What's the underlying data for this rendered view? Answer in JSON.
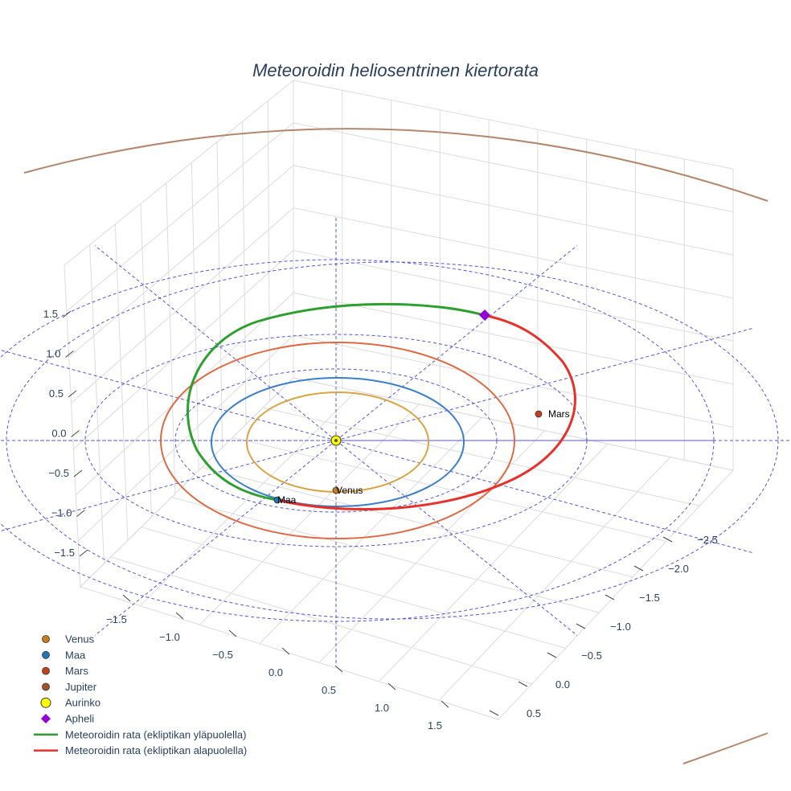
{
  "chart_data": {
    "type": "line",
    "title": "Meteoroidin heliosentrinen kiertorata",
    "z_ticks": [
      "1.5",
      "1.0",
      "0.5",
      "0.0",
      "−0.5",
      "−1.0",
      "−1.5"
    ],
    "x_ticks": [
      "−1.5",
      "−1.0",
      "−0.5",
      "0.0",
      "0.5",
      "1.0",
      "1.5"
    ],
    "y_ticks": [
      "−2.5",
      "−2.0",
      "−1.5",
      "−1.0",
      "−0.5",
      "0.0",
      "0.5"
    ],
    "orbits": [
      {
        "name": "Venus",
        "radius_au": 0.72,
        "color": "#d9a441"
      },
      {
        "name": "Maa",
        "radius_au": 1.0,
        "color": "#3a7fc8"
      },
      {
        "name": "Mars",
        "radius_au": 1.52,
        "color": "#de6a44"
      },
      {
        "name": "Jupiter",
        "radius_au": 5.2,
        "color": "#b5866a"
      }
    ],
    "points": [
      {
        "name": "Venus",
        "label": "Venus",
        "color": "#c87d1e"
      },
      {
        "name": "Maa",
        "label": "Maa",
        "color": "#1f77b4"
      },
      {
        "name": "Mars",
        "label": "Mars",
        "color": "#c1421a"
      },
      {
        "name": "Aurinko",
        "label": "",
        "color": "#ffff00"
      },
      {
        "name": "Apheli",
        "label": "",
        "color": "#9400d3"
      }
    ],
    "meteoroid": {
      "above_color": "#2ca02c",
      "below_color": "#e8302a"
    },
    "legend": [
      {
        "label": "Venus",
        "kind": "dot",
        "color": "#c87d1e"
      },
      {
        "label": "Maa",
        "kind": "dot",
        "color": "#1f77b4"
      },
      {
        "label": "Mars",
        "kind": "dot",
        "color": "#c1421a"
      },
      {
        "label": "Jupiter",
        "kind": "dot",
        "color": "#a0522d"
      },
      {
        "label": "Aurinko",
        "kind": "sun",
        "color": "#ffff00"
      },
      {
        "label": "Apheli",
        "kind": "diamond",
        "color": "#9400d3"
      },
      {
        "label": "Meteoroidin rata (ekliptikan yläpuolella)",
        "kind": "line",
        "color": "#2ca02c"
      },
      {
        "label": "Meteoroidin rata (ekliptikan alapuolella)",
        "kind": "line",
        "color": "#e8302a"
      }
    ],
    "legend_position": "bottom-left",
    "grid": true
  }
}
